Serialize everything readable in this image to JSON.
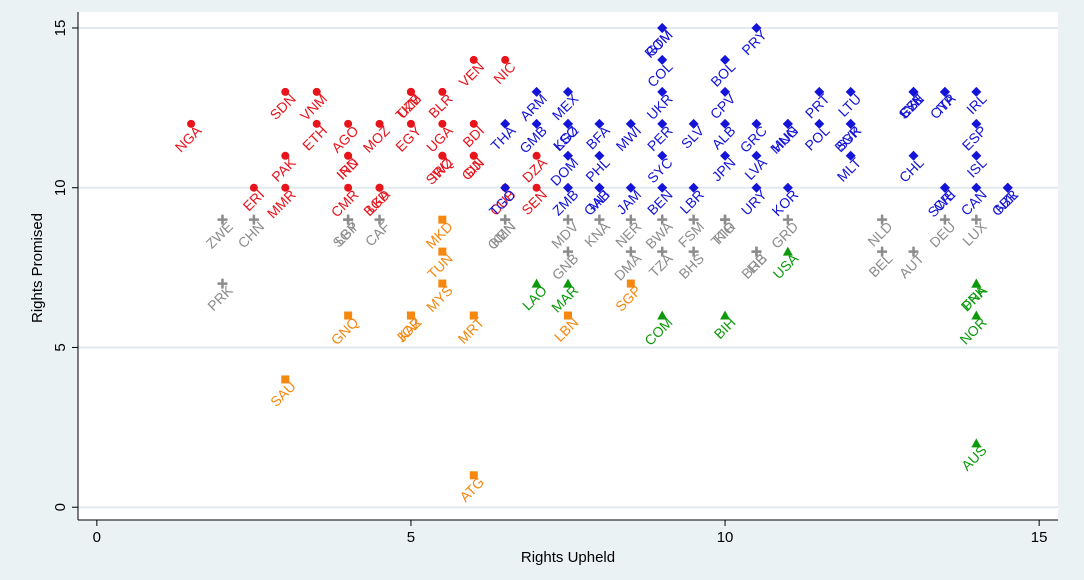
{
  "chart_data": {
    "type": "scatter",
    "title": "",
    "xlabel": "Rights Upheld",
    "ylabel": "Rights Promised",
    "xlim": [
      -0.3,
      15.3
    ],
    "ylim": [
      -0.4,
      15.5
    ],
    "x_ticks": [
      "0",
      "5",
      "10",
      "15"
    ],
    "y_ticks": [
      "0",
      "5",
      "10",
      "15"
    ],
    "grid": true,
    "legend": "none",
    "series": [
      {
        "color": "#e8141c",
        "marker": "circle",
        "points": [
          {
            "label": "NGA",
            "x": 1.5,
            "y": 12
          },
          {
            "label": "ERI",
            "x": 2.5,
            "y": 10
          },
          {
            "label": "MMR",
            "x": 3.0,
            "y": 10
          },
          {
            "label": "PAK",
            "x": 3.0,
            "y": 11
          },
          {
            "label": "SDN",
            "x": 3.0,
            "y": 13
          },
          {
            "label": "VNM",
            "x": 3.5,
            "y": 13
          },
          {
            "label": "ETH",
            "x": 3.5,
            "y": 12
          },
          {
            "label": "IND",
            "x": 4.0,
            "y": 11
          },
          {
            "label": "IRN",
            "x": 4.0,
            "y": 11
          },
          {
            "label": "CMR",
            "x": 4.0,
            "y": 10
          },
          {
            "label": "BGD",
            "x": 4.5,
            "y": 10
          },
          {
            "label": "LKA",
            "x": 4.5,
            "y": 10
          },
          {
            "label": "AGO",
            "x": 4.0,
            "y": 12
          },
          {
            "label": "MOZ",
            "x": 4.5,
            "y": 12
          },
          {
            "label": "EGY",
            "x": 5.0,
            "y": 12
          },
          {
            "label": "TKM",
            "x": 5.0,
            "y": 13
          },
          {
            "label": "UZB",
            "x": 5.0,
            "y": 13
          },
          {
            "label": "BLR",
            "x": 5.5,
            "y": 13
          },
          {
            "label": "UGA",
            "x": 5.5,
            "y": 12
          },
          {
            "label": "SWZ",
            "x": 5.5,
            "y": 11
          },
          {
            "label": "IRQ",
            "x": 5.5,
            "y": 11
          },
          {
            "label": "VEN",
            "x": 6.0,
            "y": 14
          },
          {
            "label": "BDI",
            "x": 6.0,
            "y": 12
          },
          {
            "label": "GIN",
            "x": 6.0,
            "y": 11
          },
          {
            "label": "DJI",
            "x": 6.0,
            "y": 11
          },
          {
            "label": "NIC",
            "x": 6.5,
            "y": 14
          },
          {
            "label": "CUB",
            "x": 6.5,
            "y": 10
          },
          {
            "label": "DZA",
            "x": 7.0,
            "y": 11
          },
          {
            "label": "SEN",
            "x": 7.0,
            "y": 10
          }
        ]
      },
      {
        "color": "#1414d8",
        "marker": "diamond",
        "points": [
          {
            "label": "THA",
            "x": 6.5,
            "y": 12
          },
          {
            "label": "TGO",
            "x": 6.5,
            "y": 10
          },
          {
            "label": "ARM",
            "x": 7.0,
            "y": 13
          },
          {
            "label": "GMB",
            "x": 7.0,
            "y": 12
          },
          {
            "label": "MEX",
            "x": 7.5,
            "y": 13
          },
          {
            "label": "KGZ",
            "x": 7.5,
            "y": 12
          },
          {
            "label": "LSO",
            "x": 7.5,
            "y": 12
          },
          {
            "label": "DOM",
            "x": 7.5,
            "y": 11
          },
          {
            "label": "ZMB",
            "x": 7.5,
            "y": 10
          },
          {
            "label": "BFA",
            "x": 8.0,
            "y": 12
          },
          {
            "label": "PHL",
            "x": 8.0,
            "y": 11
          },
          {
            "label": "MLI",
            "x": 8.0,
            "y": 10
          },
          {
            "label": "GAB",
            "x": 8.0,
            "y": 10
          },
          {
            "label": "GTM",
            "x": 9.0,
            "y": 15
          },
          {
            "label": "COL",
            "x": 9.0,
            "y": 14
          },
          {
            "label": "ROM",
            "x": 9.0,
            "y": 15
          },
          {
            "label": "UKR",
            "x": 9.0,
            "y": 13
          },
          {
            "label": "MWI",
            "x": 8.5,
            "y": 12
          },
          {
            "label": "PRY",
            "x": 10.5,
            "y": 15
          },
          {
            "label": "BOL",
            "x": 10.0,
            "y": 14
          },
          {
            "label": "CPV",
            "x": 10.0,
            "y": 13
          },
          {
            "label": "PER",
            "x": 9.0,
            "y": 12
          },
          {
            "label": "SLV",
            "x": 9.5,
            "y": 12
          },
          {
            "label": "ALB",
            "x": 10.0,
            "y": 12
          },
          {
            "label": "SYC",
            "x": 9.0,
            "y": 11
          },
          {
            "label": "BEN",
            "x": 9.0,
            "y": 10
          },
          {
            "label": "JAM",
            "x": 8.5,
            "y": 10
          },
          {
            "label": "LBR",
            "x": 9.5,
            "y": 10
          },
          {
            "label": "JPN",
            "x": 10.0,
            "y": 11
          },
          {
            "label": "LVA",
            "x": 10.5,
            "y": 11
          },
          {
            "label": "URY",
            "x": 10.5,
            "y": 10
          },
          {
            "label": "GRC",
            "x": 10.5,
            "y": 12
          },
          {
            "label": "HUN",
            "x": 11.0,
            "y": 12
          },
          {
            "label": "MNG",
            "x": 11.0,
            "y": 12
          },
          {
            "label": "KOR",
            "x": 11.0,
            "y": 10
          },
          {
            "label": "PRT",
            "x": 11.5,
            "y": 13
          },
          {
            "label": "POL",
            "x": 11.5,
            "y": 12
          },
          {
            "label": "LTU",
            "x": 12.0,
            "y": 13
          },
          {
            "label": "SVK",
            "x": 12.0,
            "y": 12
          },
          {
            "label": "BGR",
            "x": 12.0,
            "y": 12
          },
          {
            "label": "MLT",
            "x": 12.0,
            "y": 11
          },
          {
            "label": "SVN",
            "x": 13.0,
            "y": 13
          },
          {
            "label": "CZE",
            "x": 13.0,
            "y": 13
          },
          {
            "label": "EST",
            "x": 13.0,
            "y": 13
          },
          {
            "label": "ITA",
            "x": 13.5,
            "y": 13
          },
          {
            "label": "CYP",
            "x": 13.5,
            "y": 13
          },
          {
            "label": "CHL",
            "x": 13.0,
            "y": 11
          },
          {
            "label": "SWE",
            "x": 13.5,
            "y": 10
          },
          {
            "label": "CRI",
            "x": 13.5,
            "y": 10
          },
          {
            "label": "IRL",
            "x": 14.0,
            "y": 13
          },
          {
            "label": "ESP",
            "x": 14.0,
            "y": 12
          },
          {
            "label": "ISL",
            "x": 14.0,
            "y": 11
          },
          {
            "label": "CAN",
            "x": 14.0,
            "y": 10
          },
          {
            "label": "NZL",
            "x": 14.5,
            "y": 10
          },
          {
            "label": "GBR",
            "x": 14.5,
            "y": 10
          }
        ]
      },
      {
        "color": "#8c8c8c",
        "marker": "plus",
        "points": [
          {
            "label": "ZWE",
            "x": 2.0,
            "y": 9
          },
          {
            "label": "CHN",
            "x": 2.5,
            "y": 9
          },
          {
            "label": "PRK",
            "x": 2.0,
            "y": 7
          },
          {
            "label": "LBY",
            "x": 4.0,
            "y": 9
          },
          {
            "label": "SGP",
            "x": 4.0,
            "y": 9
          },
          {
            "label": "CAF",
            "x": 4.5,
            "y": 9
          },
          {
            "label": "KEN",
            "x": 6.5,
            "y": 9
          },
          {
            "label": "OMN",
            "x": 6.5,
            "y": 9
          },
          {
            "label": "MDV",
            "x": 7.5,
            "y": 9
          },
          {
            "label": "GNB",
            "x": 7.5,
            "y": 8
          },
          {
            "label": "KNA",
            "x": 8.0,
            "y": 9
          },
          {
            "label": "NER",
            "x": 8.5,
            "y": 9
          },
          {
            "label": "DMA",
            "x": 8.5,
            "y": 8
          },
          {
            "label": "BWA",
            "x": 9.0,
            "y": 9
          },
          {
            "label": "TZA",
            "x": 9.0,
            "y": 8
          },
          {
            "label": "FSM",
            "x": 9.5,
            "y": 9
          },
          {
            "label": "BHS",
            "x": 9.5,
            "y": 8
          },
          {
            "label": "KIR",
            "x": 10.0,
            "y": 9
          },
          {
            "label": "TTO",
            "x": 10.0,
            "y": 9
          },
          {
            "label": "LIE",
            "x": 10.5,
            "y": 8
          },
          {
            "label": "BRB",
            "x": 10.5,
            "y": 8
          },
          {
            "label": "GRD",
            "x": 11.0,
            "y": 9
          },
          {
            "label": "NLD",
            "x": 12.5,
            "y": 9
          },
          {
            "label": "BEL",
            "x": 12.5,
            "y": 8
          },
          {
            "label": "AUT",
            "x": 13.0,
            "y": 8
          },
          {
            "label": "DEU",
            "x": 13.5,
            "y": 9
          },
          {
            "label": "LUX",
            "x": 14.0,
            "y": 9
          }
        ]
      },
      {
        "color": "#f6870f",
        "marker": "square",
        "points": [
          {
            "label": "SAU",
            "x": 3.0,
            "y": 4
          },
          {
            "label": "GNQ",
            "x": 4.0,
            "y": 6
          },
          {
            "label": "JOR",
            "x": 5.0,
            "y": 6
          },
          {
            "label": "KAZ",
            "x": 5.0,
            "y": 6
          },
          {
            "label": "MRT",
            "x": 6.0,
            "y": 6
          },
          {
            "label": "MYS",
            "x": 5.5,
            "y": 7
          },
          {
            "label": "TUN",
            "x": 5.5,
            "y": 8
          },
          {
            "label": "MKD",
            "x": 5.5,
            "y": 9
          },
          {
            "label": "LBN",
            "x": 7.5,
            "y": 6
          },
          {
            "label": "SGP",
            "x": 8.5,
            "y": 7
          },
          {
            "label": "ATG",
            "x": 6.0,
            "y": 1
          }
        ]
      },
      {
        "color": "#0c9a0c",
        "marker": "triangle",
        "points": [
          {
            "label": "LAO",
            "x": 7.0,
            "y": 7
          },
          {
            "label": "MAR",
            "x": 7.5,
            "y": 7
          },
          {
            "label": "COM",
            "x": 9.0,
            "y": 6
          },
          {
            "label": "BIH",
            "x": 10.0,
            "y": 6
          },
          {
            "label": "USA",
            "x": 11.0,
            "y": 8
          },
          {
            "label": "FRA",
            "x": 14.0,
            "y": 7
          },
          {
            "label": "DNK",
            "x": 14.0,
            "y": 7
          },
          {
            "label": "NOR",
            "x": 14.0,
            "y": 6
          },
          {
            "label": "AUS",
            "x": 14.0,
            "y": 2
          }
        ]
      }
    ]
  }
}
